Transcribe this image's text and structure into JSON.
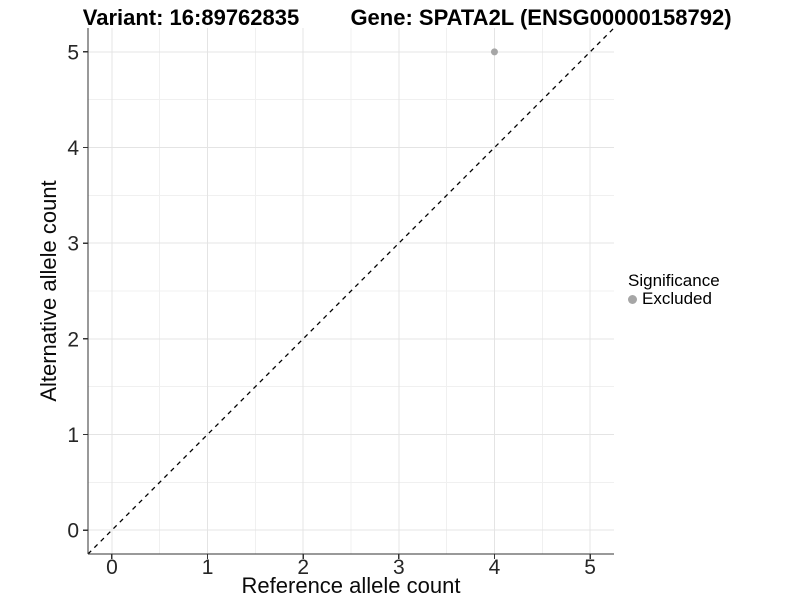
{
  "titles": {
    "variant": "Variant: 16:89762835",
    "gene": "Gene: SPATA2L (ENSG00000158792)"
  },
  "chart_data": {
    "type": "scatter",
    "title_left": "Variant: 16:89762835",
    "title_right": "Gene: SPATA2L (ENSG00000158792)",
    "xlabel": "Reference allele count",
    "ylabel": "Alternative allele count",
    "xlim": [
      -0.25,
      5.25
    ],
    "ylim": [
      -0.25,
      5.25
    ],
    "xticks": [
      0,
      1,
      2,
      3,
      4,
      5
    ],
    "yticks": [
      0,
      1,
      2,
      3,
      4,
      5
    ],
    "x_minor_ticks": [
      0.5,
      1.5,
      2.5,
      3.5,
      4.5
    ],
    "y_minor_ticks": [
      0.5,
      1.5,
      2.5,
      3.5,
      4.5
    ],
    "grid": "major and minor gridlines on, white background",
    "series": [
      {
        "name": "Excluded",
        "points": [
          {
            "x": 4,
            "y": 5
          }
        ],
        "color": "#a6a6a6"
      }
    ],
    "reference_line": {
      "description": "identity line y = x",
      "style": "dashed",
      "color": "#000000",
      "from": [
        -0.25,
        -0.25
      ],
      "to": [
        5.25,
        5.25
      ]
    },
    "legend": {
      "title": "Significance",
      "position": "right",
      "entries": [
        {
          "label": "Excluded",
          "color": "#a6a6a6"
        }
      ]
    }
  },
  "colors": {
    "background": "#ffffff",
    "major_grid": "#e4e4e4",
    "minor_grid": "#f0f0f0",
    "axis_line": "#333333",
    "tick_text": "#262626",
    "point": "#a6a6a6",
    "identity_line": "#000000"
  }
}
